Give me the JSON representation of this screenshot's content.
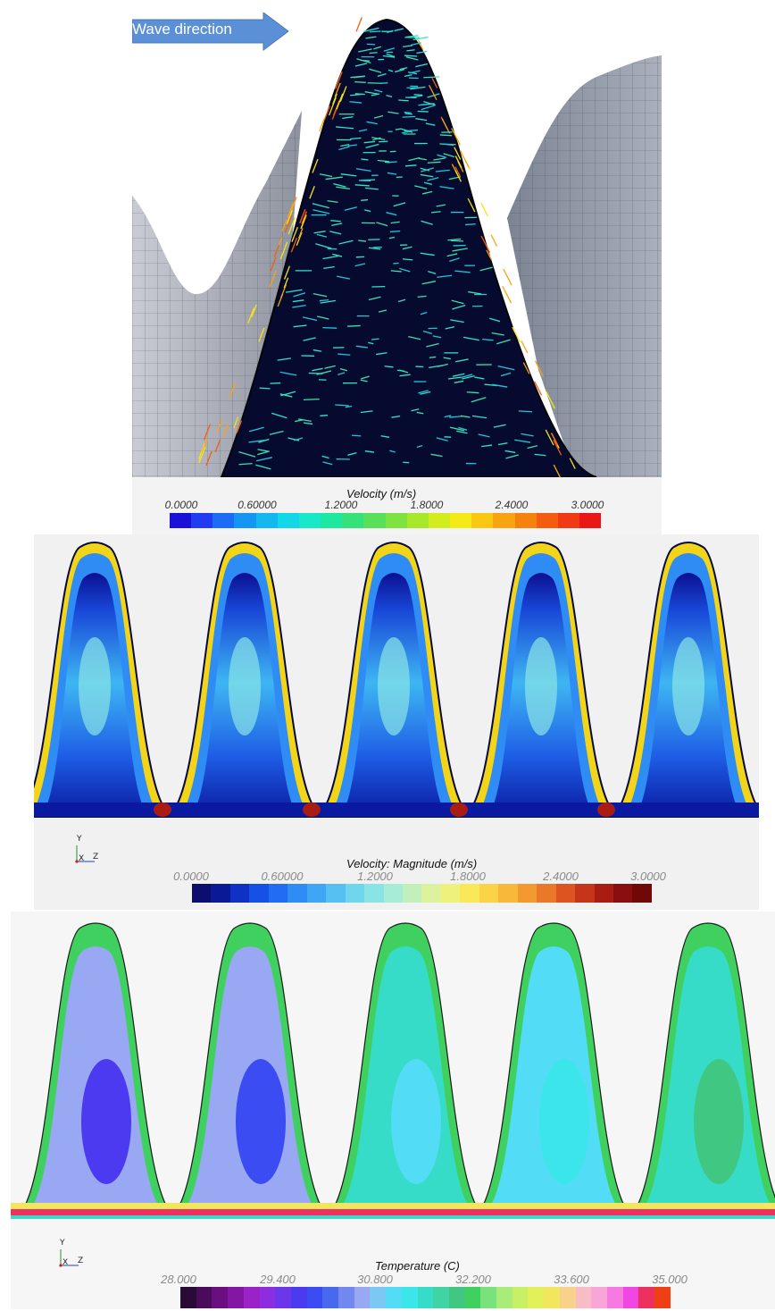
{
  "panel_top": {
    "arrow_label": "Wave direction",
    "colorbar_title": "Velocity (m/s)",
    "ticks": [
      "0.0000",
      "0.60000",
      "1.2000",
      "1.8000",
      "2.4000",
      "3.0000"
    ],
    "colors": [
      "#1a10d8",
      "#1f3cf0",
      "#1c6cf6",
      "#1596f2",
      "#13b8ee",
      "#12d7e6",
      "#16e8c8",
      "#1de8a0",
      "#35e27a",
      "#58e05a",
      "#7ee241",
      "#a7e82d",
      "#d2ec1e",
      "#f4ea16",
      "#f8c812",
      "#f8a410",
      "#f6820e",
      "#f45c10",
      "#f03a14",
      "#ea1717"
    ]
  },
  "panel_middle": {
    "colorbar_title": "Velocity: Magnitude (m/s)",
    "ticks": [
      "0.0000",
      "0.60000",
      "1.2000",
      "1.8000",
      "2.4000",
      "3.0000"
    ],
    "axes": {
      "y": "Y",
      "x": "X",
      "z": "Z"
    },
    "colors": [
      "#0b0e6e",
      "#0a1a96",
      "#1032c4",
      "#1650e4",
      "#206cf2",
      "#2e8cf4",
      "#3ea6f4",
      "#56c0f2",
      "#70d6ee",
      "#8ae4e6",
      "#a6ecd6",
      "#c2f0bc",
      "#dcf29c",
      "#eef27a",
      "#f8e85a",
      "#fad446",
      "#f8b83a",
      "#f29a30",
      "#ea7828",
      "#de5420",
      "#c6341a",
      "#a81c14",
      "#8a0e10",
      "#700808"
    ]
  },
  "panel_bottom": {
    "colorbar_title": "Temperature (C)",
    "ticks": [
      "28.000",
      "29.400",
      "30.800",
      "32.200",
      "33.600",
      "35.000"
    ],
    "axes": {
      "y": "Y",
      "x": "X",
      "z": "Z"
    },
    "colors": [
      "#2a0a36",
      "#4a0c5a",
      "#6a0e80",
      "#8416a6",
      "#9a22c6",
      "#8c2ee0",
      "#6c36ea",
      "#4c3af0",
      "#3a4cf2",
      "#4868ee",
      "#7088f0",
      "#98a8f2",
      "#7cc8f4",
      "#52dcf6",
      "#3ae6ea",
      "#36dcc8",
      "#40d4a4",
      "#40c882",
      "#40d060",
      "#7ae27c",
      "#a8ec7a",
      "#c8f066",
      "#e2f05a",
      "#f2e65c",
      "#f8d28a",
      "#f8bcc6",
      "#f8a6d8",
      "#f67ae2",
      "#f046e4",
      "#ee3060",
      "#ee4014"
    ]
  }
}
